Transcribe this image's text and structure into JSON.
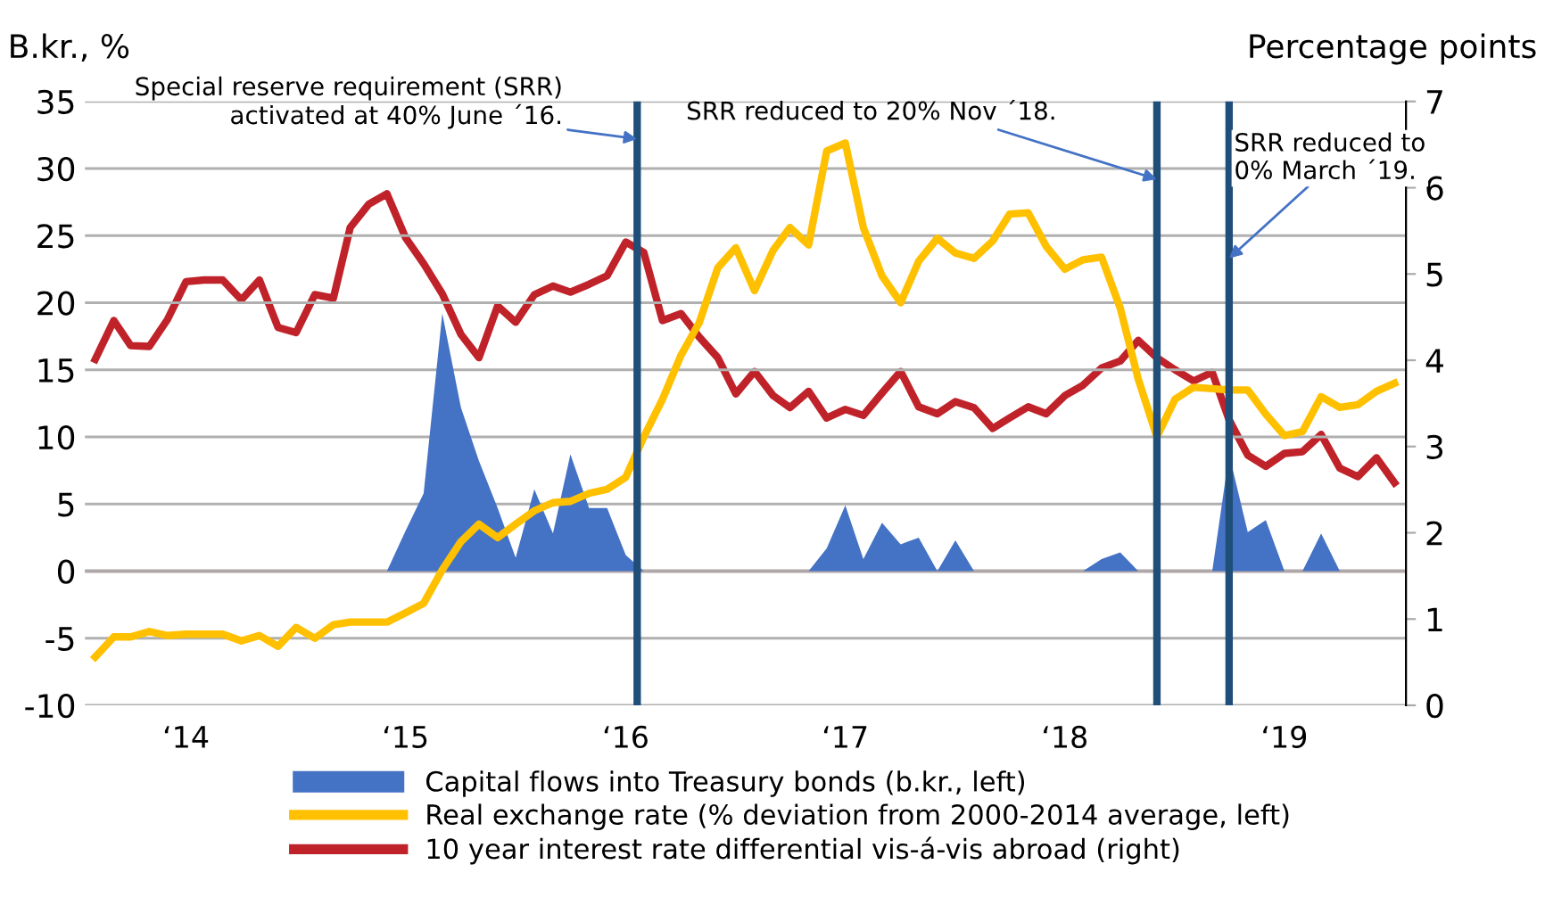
{
  "chart_data": {
    "type": "line",
    "ylabel": "B.kr., %",
    "y2label": "Percentage points",
    "x": [
      "2014-01",
      "2014-02",
      "2014-03",
      "2014-04",
      "2014-05",
      "2014-06",
      "2014-07",
      "2014-08",
      "2014-09",
      "2014-10",
      "2014-11",
      "2014-12",
      "2015-01",
      "2015-02",
      "2015-03",
      "2015-04",
      "2015-05",
      "2015-06",
      "2015-07",
      "2015-08",
      "2015-09",
      "2015-10",
      "2015-11",
      "2015-12",
      "2016-01",
      "2016-02",
      "2016-03",
      "2016-04",
      "2016-05",
      "2016-06",
      "2016-07",
      "2016-08",
      "2016-09",
      "2016-10",
      "2016-11",
      "2016-12",
      "2017-01",
      "2017-02",
      "2017-03",
      "2017-04",
      "2017-05",
      "2017-06",
      "2017-07",
      "2017-08",
      "2017-09",
      "2017-10",
      "2017-11",
      "2017-12",
      "2018-01",
      "2018-02",
      "2018-03",
      "2018-04",
      "2018-05",
      "2018-06",
      "2018-07",
      "2018-08",
      "2018-09",
      "2018-10",
      "2018-11",
      "2018-12",
      "2019-01",
      "2019-02",
      "2019-03",
      "2019-04",
      "2019-05",
      "2019-06",
      "2019-07",
      "2019-08",
      "2019-09",
      "2019-10",
      "2019-11",
      "2019-12"
    ],
    "series": [
      {
        "name": "Capital flows into Treasury bonds (b.kr., left)",
        "type": "area",
        "color": "#4472c4",
        "values": [
          0,
          0,
          0,
          0,
          0,
          0,
          0,
          0,
          0,
          0,
          0,
          0,
          0,
          0,
          0,
          0,
          0,
          3.0,
          5.8,
          19.2,
          12.2,
          8.2,
          4.7,
          1.0,
          6.1,
          2.8,
          8.7,
          4.7,
          4.7,
          1.2,
          0,
          0,
          0,
          0,
          0,
          0,
          0,
          0,
          0,
          0,
          1.7,
          4.9,
          0.9,
          3.6,
          2.0,
          2.5,
          0,
          2.3,
          0,
          0,
          0,
          0,
          0,
          0,
          0,
          0.9,
          1.4,
          0,
          0,
          0,
          0,
          0,
          8.7,
          2.9,
          3.8,
          0,
          0,
          2.8,
          0,
          0,
          0,
          0
        ]
      },
      {
        "name": "Real exchange rate (% deviation from 2000-2014 average, left)",
        "color": "#ffc000",
        "values": [
          -6.4,
          -4.9,
          -4.9,
          -4.5,
          -4.8,
          -4.7,
          -4.7,
          -4.7,
          -5.2,
          -4.8,
          -5.6,
          -4.2,
          -5.0,
          -4.0,
          -3.8,
          -3.8,
          -3.8,
          -3.1,
          -2.4,
          0.1,
          2.2,
          3.5,
          2.5,
          3.5,
          4.5,
          5.1,
          5.2,
          5.8,
          6.1,
          7.0,
          10.0,
          12.8,
          16.1,
          18.5,
          22.6,
          24.1,
          20.9,
          23.9,
          25.6,
          24.3,
          31.3,
          31.9,
          25.6,
          22.0,
          20.0,
          23.1,
          24.8,
          23.7,
          23.3,
          24.6,
          26.6,
          26.7,
          24.2,
          22.5,
          23.2,
          23.4,
          19.6,
          14.3,
          10.0,
          12.8,
          13.7,
          13.6,
          13.5,
          13.5,
          11.7,
          10.1,
          10.4,
          13.0,
          12.2,
          12.4,
          13.4,
          14.0
        ]
      },
      {
        "name": "10 year interest rate differential vis-á-vis abroad (right)",
        "axis": "y2",
        "color": "#c0222a",
        "values": [
          4.01,
          4.46,
          4.17,
          4.16,
          4.47,
          4.91,
          4.93,
          4.93,
          4.7,
          4.93,
          4.38,
          4.32,
          4.76,
          4.72,
          5.54,
          5.81,
          5.93,
          5.42,
          5.12,
          4.77,
          4.3,
          4.03,
          4.63,
          4.44,
          4.76,
          4.86,
          4.79,
          4.88,
          4.98,
          5.37,
          5.25,
          4.46,
          4.54,
          4.27,
          4.03,
          3.61,
          3.87,
          3.59,
          3.45,
          3.64,
          3.33,
          3.43,
          3.36,
          3.62,
          3.87,
          3.46,
          3.38,
          3.52,
          3.45,
          3.21,
          3.33,
          3.46,
          3.38,
          3.59,
          3.71,
          3.91,
          3.99,
          4.23,
          4.03,
          3.89,
          3.76,
          3.86,
          3.31,
          2.9,
          2.77,
          2.92,
          2.94,
          3.14,
          2.75,
          2.65,
          2.87,
          2.58
        ]
      }
    ],
    "xlim": [
      "2013-12-15",
      "2019-12-20"
    ],
    "xticks": [
      {
        "value": "2014-06",
        "label": "‘14"
      },
      {
        "value": "2015-06",
        "label": "‘15"
      },
      {
        "value": "2016-06",
        "label": "‘16"
      },
      {
        "value": "2017-06",
        "label": "‘17"
      },
      {
        "value": "2018-06",
        "label": "‘18"
      },
      {
        "value": "2019-06",
        "label": "‘19"
      }
    ],
    "ylim": [
      -10,
      35
    ],
    "yticks": [
      -10,
      -5,
      0,
      5,
      10,
      15,
      20,
      25,
      30,
      35
    ],
    "y2lim": [
      0,
      7
    ],
    "y2ticks": [
      0,
      1,
      2,
      3,
      4,
      5,
      6,
      7
    ],
    "ref_lines": [
      {
        "axis": "x",
        "value": "2016-06-20",
        "color": "#1f4e79"
      },
      {
        "axis": "x",
        "value": "2018-11",
        "color": "#1f4e79"
      },
      {
        "axis": "x",
        "value": "2019-03",
        "color": "#1f4e79"
      }
    ],
    "annotations": [
      {
        "text": "Special reserve requirement (SRR)\nactivated at 40% June ´16.",
        "x": "2016-06-20",
        "y": 32.2
      },
      {
        "text": "SRR reduced to 20% Nov ´18.",
        "x": "2018-11",
        "y": 29.2
      },
      {
        "text": "SRR reduced to\n0% March ´19.",
        "x": "2019-03",
        "y": 23.3
      }
    ],
    "grid": "y",
    "legend": "bottom"
  }
}
